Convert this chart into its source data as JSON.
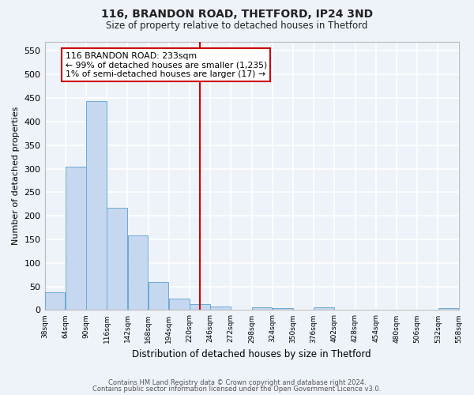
{
  "title": "116, BRANDON ROAD, THETFORD, IP24 3ND",
  "subtitle": "Size of property relative to detached houses in Thetford",
  "xlabel": "Distribution of detached houses by size in Thetford",
  "ylabel": "Number of detached properties",
  "footer_line1": "Contains HM Land Registry data © Crown copyright and database right 2024.",
  "footer_line2": "Contains public sector information licensed under the Open Government Licence v3.0.",
  "bar_color": "#c5d8ef",
  "bar_edge_color": "#6aaad4",
  "background_color": "#eef2f9",
  "grid_color": "#ffffff",
  "annotation_text": "116 BRANDON ROAD: 233sqm\n← 99% of detached houses are smaller (1,235)\n1% of semi-detached houses are larger (17) →",
  "annotation_box_color": "#ffffff",
  "annotation_box_edge": "#cc0000",
  "vline_x": 233,
  "vline_color": "#cc0000",
  "bin_edges": [
    38,
    64,
    90,
    116,
    142,
    168,
    194,
    220,
    246,
    272,
    298,
    324,
    350,
    376,
    402,
    428,
    454,
    480,
    506,
    532,
    558
  ],
  "bar_heights": [
    38,
    304,
    444,
    217,
    158,
    59,
    25,
    12,
    8,
    0,
    5,
    4,
    0,
    5,
    0,
    0,
    0,
    0,
    0,
    4
  ],
  "ylim": [
    0,
    570
  ],
  "yticks": [
    0,
    50,
    100,
    150,
    200,
    250,
    300,
    350,
    400,
    450,
    500,
    550
  ]
}
